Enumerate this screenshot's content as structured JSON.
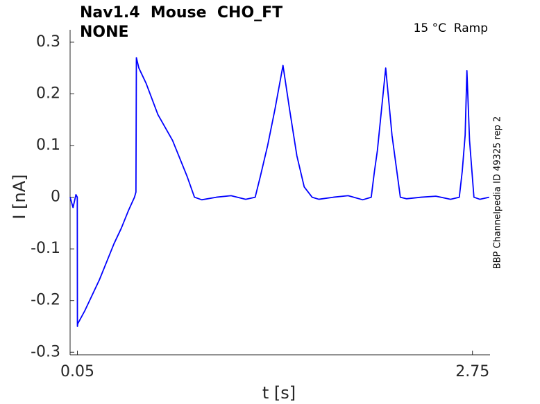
{
  "chart_data": {
    "type": "line",
    "title": "Nav1.4  Mouse  CHO_FT",
    "subtitle": "NONE",
    "annotation": "15 °C  Ramp",
    "side_note": "BBP Channelpedia ID 49325 rep 2",
    "x_label": "t [s]",
    "y_label": "I [nA]",
    "xlim": [
      0,
      2.87
    ],
    "ylim": [
      -0.305,
      0.324
    ],
    "xticks": [
      0.05,
      2.75
    ],
    "yticks": [
      -0.3,
      -0.2,
      -0.1,
      0,
      0.1,
      0.2,
      0.3
    ],
    "grid": false,
    "series": [
      {
        "color": "#0000ff",
        "x": [
          0,
          0.02,
          0.04,
          0.049,
          0.05,
          0.052,
          0.1,
          0.15,
          0.2,
          0.25,
          0.3,
          0.35,
          0.4,
          0.44,
          0.45,
          0.453,
          0.47,
          0.52,
          0.6,
          0.7,
          0.8,
          0.85,
          0.9,
          1.0,
          1.1,
          1.2,
          1.265,
          1.3,
          1.35,
          1.4,
          1.455,
          1.5,
          1.55,
          1.6,
          1.654,
          1.7,
          1.8,
          1.9,
          2.0,
          2.058,
          2.08,
          2.1,
          2.157,
          2.2,
          2.257,
          2.3,
          2.4,
          2.5,
          2.6,
          2.66,
          2.68,
          2.7,
          2.712,
          2.73,
          2.76,
          2.8,
          2.864
        ],
        "values": [
          0,
          -0.02,
          0.005,
          0,
          -0.25,
          -0.245,
          -0.22,
          -0.19,
          -0.16,
          -0.125,
          -0.09,
          -0.06,
          -0.025,
          0,
          0.01,
          0.27,
          0.25,
          0.22,
          0.16,
          0.11,
          0.04,
          0,
          -0.005,
          0,
          0.003,
          -0.004,
          0,
          0.04,
          0.1,
          0.17,
          0.255,
          0.17,
          0.08,
          0.02,
          0,
          -0.004,
          0,
          0.003,
          -0.005,
          0,
          0.05,
          0.09,
          0.25,
          0.12,
          0,
          -0.003,
          0,
          0.002,
          -0.004,
          0,
          0.05,
          0.12,
          0.245,
          0.11,
          0,
          -0.004,
          0
        ]
      }
    ]
  }
}
